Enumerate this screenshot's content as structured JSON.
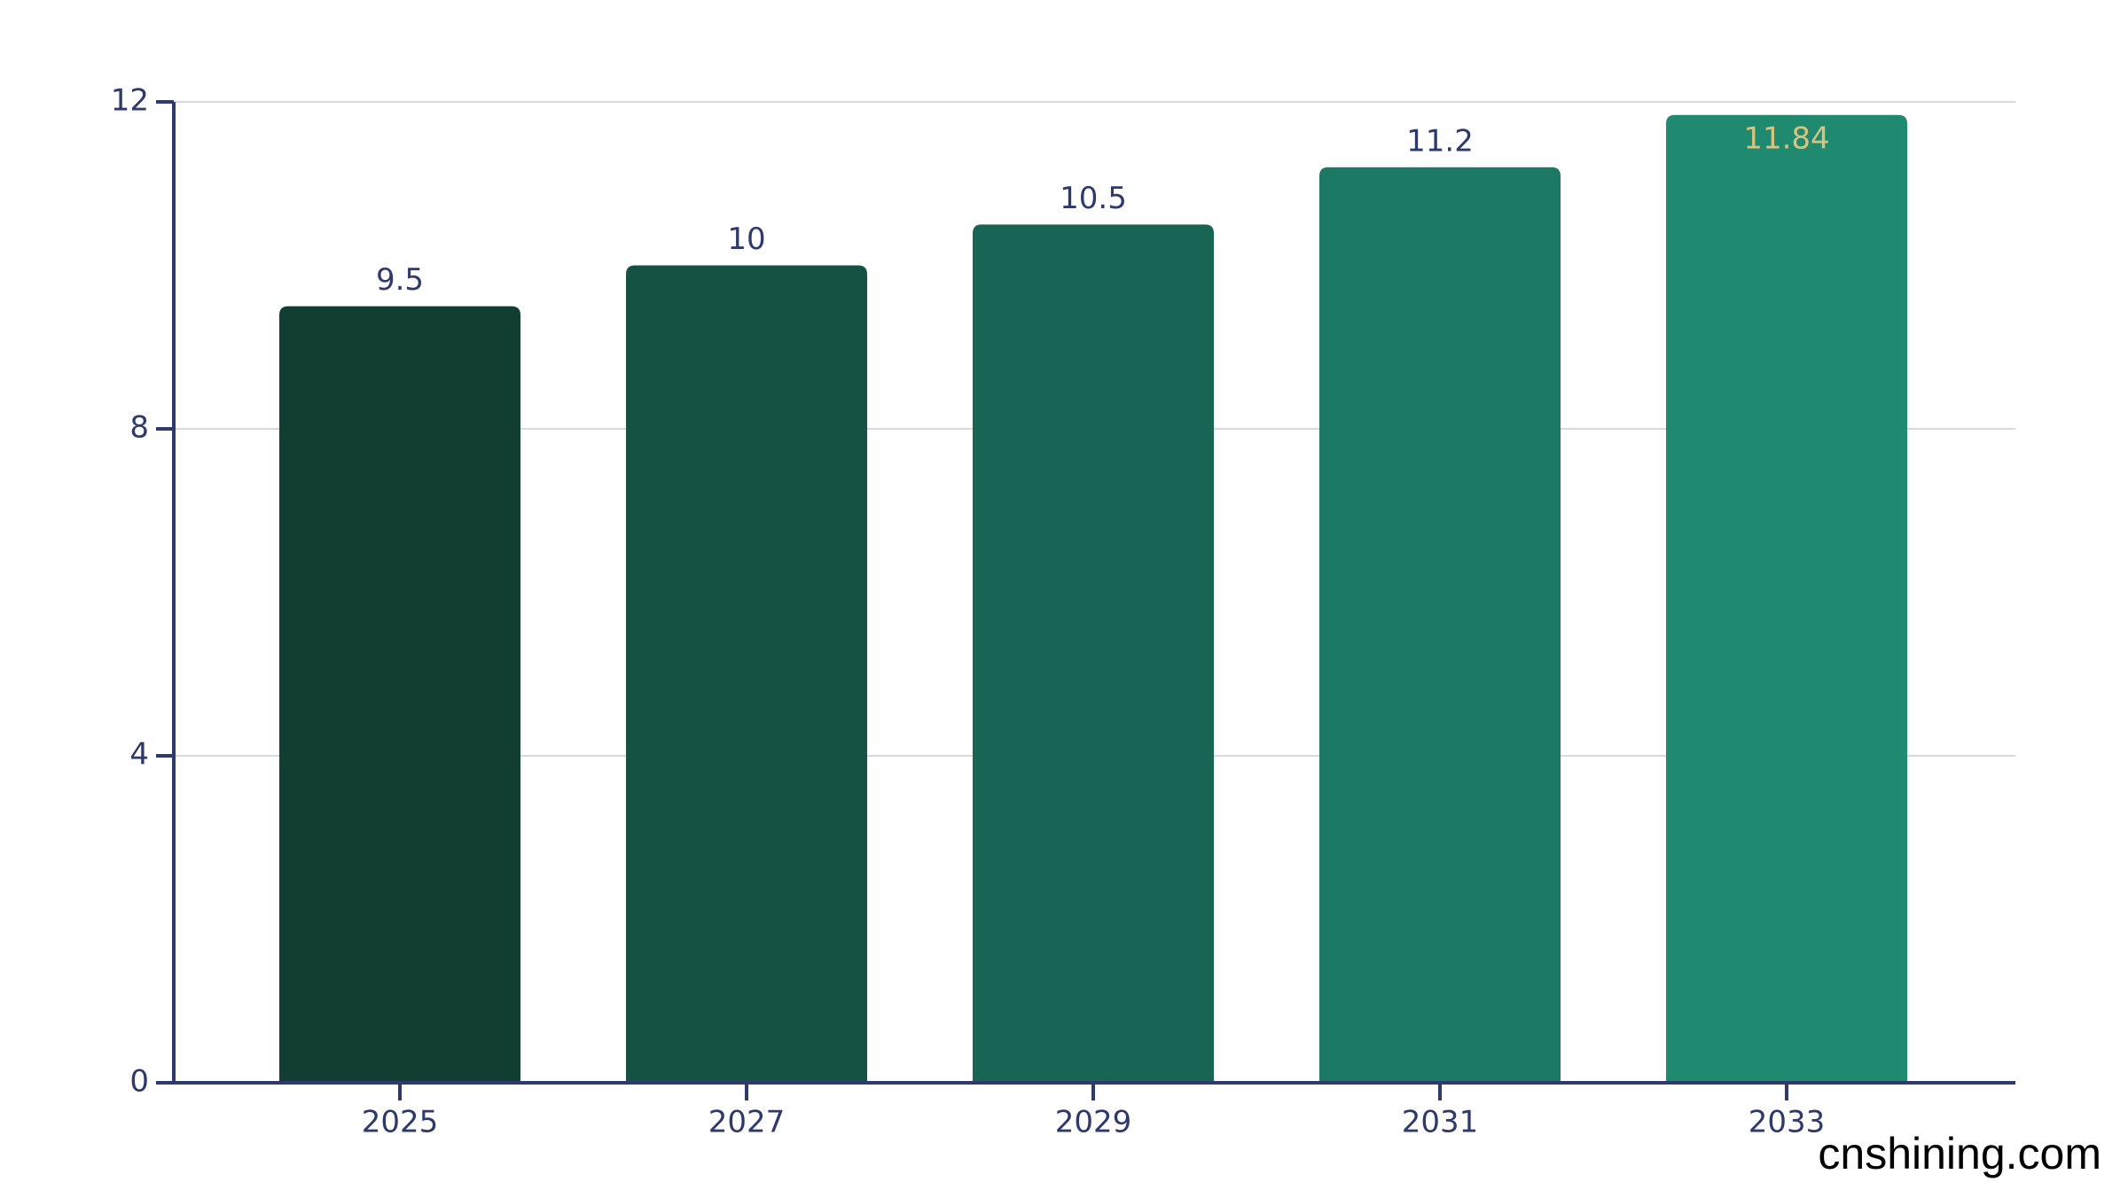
{
  "chart_data": {
    "type": "bar",
    "categories": [
      "2025",
      "2027",
      "2029",
      "2031",
      "2033"
    ],
    "values": [
      9.5,
      10,
      10.5,
      11.2,
      11.84
    ],
    "colors": [
      "#123d33",
      "#155244",
      "#186553",
      "#1c7a64",
      "#208a70"
    ],
    "value_label_colors": [
      "#2e3a6b",
      "#2e3a6b",
      "#2e3a6b",
      "#2e3a6b",
      "#d9c27e"
    ],
    "ylim": [
      0,
      12
    ],
    "yticks": [
      0,
      4,
      8,
      12
    ],
    "grid": true
  },
  "watermark": "cnshining.com"
}
